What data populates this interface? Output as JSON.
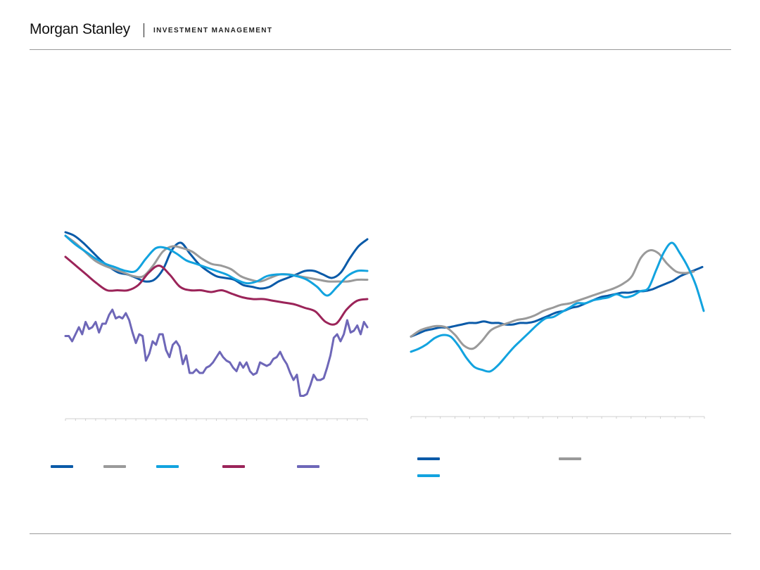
{
  "header": {
    "brand": "Morgan Stanley",
    "division": "INVESTMENT MANAGEMENT"
  },
  "colors": {
    "dark_blue": "#0a5aa8",
    "gray": "#9a9a9a",
    "light_blue": "#12a3df",
    "maroon": "#9b2459",
    "purple": "#6e67b8",
    "axis": "#cfcfcf"
  },
  "chart_data": [
    {
      "type": "line",
      "title": "",
      "xlabel": "",
      "ylabel": "",
      "x_points": 100,
      "ylim": [
        0,
        100
      ],
      "grid": false,
      "legend": "bottom",
      "series": [
        {
          "color": "dark_blue",
          "values": [
            100,
            98,
            94,
            89,
            84,
            80,
            77,
            76,
            74,
            72,
            73,
            79,
            90,
            94,
            88,
            82,
            78,
            75,
            74,
            73,
            70,
            69,
            68,
            69,
            72,
            74,
            76,
            78,
            78,
            76,
            74,
            77,
            85,
            92,
            96
          ]
        },
        {
          "color": "gray",
          "values": [
            98,
            94,
            89,
            84,
            81,
            79,
            77,
            75,
            75,
            81,
            89,
            92,
            91,
            89,
            85,
            82,
            81,
            79,
            75,
            73,
            72,
            74,
            76,
            76,
            75,
            74,
            73,
            72,
            72,
            72,
            73,
            73
          ]
        },
        {
          "color": "light_blue",
          "values": [
            98,
            93,
            89,
            85,
            82,
            80,
            78,
            78,
            85,
            91,
            91,
            88,
            84,
            82,
            80,
            78,
            76,
            73,
            71,
            72,
            75,
            76,
            76,
            75,
            73,
            69,
            64,
            69,
            75,
            78,
            78
          ]
        },
        {
          "color": "maroon",
          "values": [
            86,
            81,
            76,
            71,
            67,
            67,
            67,
            70,
            77,
            81,
            76,
            69,
            67,
            67,
            66,
            67,
            65,
            63,
            62,
            62,
            61,
            60,
            59,
            57,
            55,
            49,
            48,
            56,
            61,
            62
          ]
        },
        {
          "color": "purple",
          "values": [
            41,
            41,
            38,
            42,
            46,
            42,
            49,
            45,
            46,
            49,
            43,
            48,
            48,
            53,
            56,
            51,
            52,
            51,
            54,
            50,
            43,
            37,
            42,
            41,
            27,
            31,
            38,
            36,
            42,
            42,
            33,
            29,
            36,
            38,
            35,
            25,
            30,
            20,
            20,
            22,
            20,
            20,
            23,
            24,
            26,
            29,
            32,
            29,
            27,
            26,
            23,
            21,
            26,
            23,
            26,
            21,
            19,
            20,
            26,
            25,
            24,
            25,
            28,
            29,
            32,
            28,
            25,
            20,
            16,
            19,
            7,
            7,
            8,
            13,
            19,
            16,
            16,
            17,
            23,
            30,
            40,
            42,
            38,
            42,
            50,
            43,
            44,
            47,
            42,
            49,
            46
          ]
        }
      ]
    },
    {
      "type": "line",
      "title": "",
      "xlabel": "",
      "ylabel": "",
      "x_points": 100,
      "ylim": [
        0,
        100
      ],
      "grid": false,
      "legend": "bottom",
      "series": [
        {
          "color": "dark_blue",
          "values": [
            38,
            40,
            42,
            43,
            44,
            44,
            45,
            46,
            47,
            47,
            48,
            47,
            47,
            46,
            46,
            47,
            47,
            48,
            50,
            52,
            54,
            55,
            57,
            58,
            60,
            62,
            64,
            65,
            66,
            67,
            67,
            68,
            68,
            69,
            71,
            73,
            75,
            78,
            80,
            82,
            84
          ]
        },
        {
          "color": "gray",
          "values": [
            38,
            42,
            44,
            45,
            44,
            39,
            32,
            30,
            35,
            42,
            45,
            47,
            49,
            50,
            52,
            55,
            57,
            59,
            60,
            62,
            64,
            66,
            68,
            70,
            73,
            78,
            90,
            95,
            93,
            86,
            81,
            80,
            81
          ]
        },
        {
          "color": "light_blue",
          "values": [
            28,
            30,
            33,
            37,
            39,
            38,
            32,
            24,
            18,
            16,
            15,
            19,
            25,
            31,
            36,
            41,
            46,
            50,
            51,
            54,
            57,
            60,
            60,
            62,
            63,
            64,
            66,
            64,
            65,
            68,
            70,
            82,
            94,
            100,
            93,
            84,
            72,
            55
          ]
        }
      ]
    }
  ]
}
